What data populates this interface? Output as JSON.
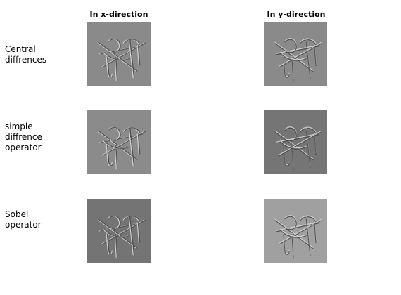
{
  "columns": [
    {
      "title": "In x-direction"
    },
    {
      "title": "In y-direction"
    }
  ],
  "rows": [
    {
      "label_lines": [
        "Central",
        "diffrences"
      ]
    },
    {
      "label_lines": [
        "simple",
        "diffrence",
        "operator"
      ]
    },
    {
      "label_lines": [
        "Sobel",
        "operator"
      ]
    }
  ],
  "colors": {
    "panel_backgrounds": [
      [
        "#8a8a8a",
        "#8a8a8a"
      ],
      [
        "#8b8b8b",
        "#757575"
      ],
      [
        "#747474",
        "#a0a0a0"
      ]
    ],
    "edge_light": "#d8d8d8",
    "edge_dark": "#4a4a4a"
  }
}
